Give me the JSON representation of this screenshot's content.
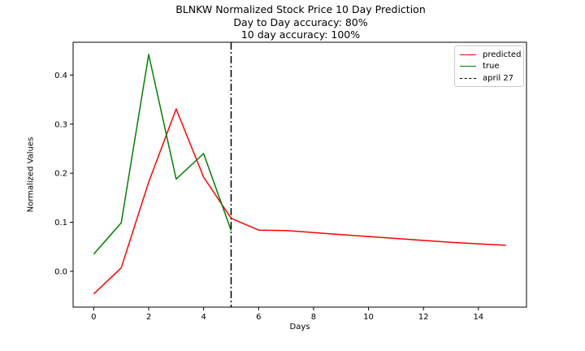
{
  "chart_data": {
    "type": "line",
    "title": "BLNKW Normalized Stock Price 10 Day Prediction",
    "subtitle_lines": [
      "Day to Day accuracy: 80%",
      "10 day accuracy: 100%"
    ],
    "xlabel": "Days",
    "ylabel": "Normalized Values",
    "xlim": [
      -0.75,
      15.75
    ],
    "ylim": [
      -0.073,
      0.467
    ],
    "xticks": [
      0,
      2,
      4,
      6,
      8,
      10,
      12,
      14
    ],
    "yticks": [
      0.0,
      0.1,
      0.2,
      0.3,
      0.4
    ],
    "ytick_labels": [
      "0.0",
      "0.1",
      "0.2",
      "0.3",
      "0.4"
    ],
    "series": [
      {
        "name": "predicted",
        "color": "#ff0000",
        "x": [
          0,
          1,
          2,
          3,
          4,
          5,
          6,
          7,
          8,
          9,
          10,
          11,
          12,
          13,
          14,
          15
        ],
        "y": [
          -0.046,
          0.007,
          0.182,
          0.331,
          0.192,
          0.108,
          0.084,
          0.083,
          0.079,
          0.075,
          0.071,
          0.067,
          0.063,
          0.059,
          0.056,
          0.053
        ]
      },
      {
        "name": "true",
        "color": "#008000",
        "x": [
          0,
          1,
          2,
          3,
          4,
          5
        ],
        "y": [
          0.035,
          0.099,
          0.442,
          0.188,
          0.24,
          0.083
        ]
      }
    ],
    "vline": {
      "name": "april 27",
      "x": 5,
      "color": "#000000",
      "style": "dashdot"
    },
    "legend_position": "top-right",
    "grid": false
  }
}
